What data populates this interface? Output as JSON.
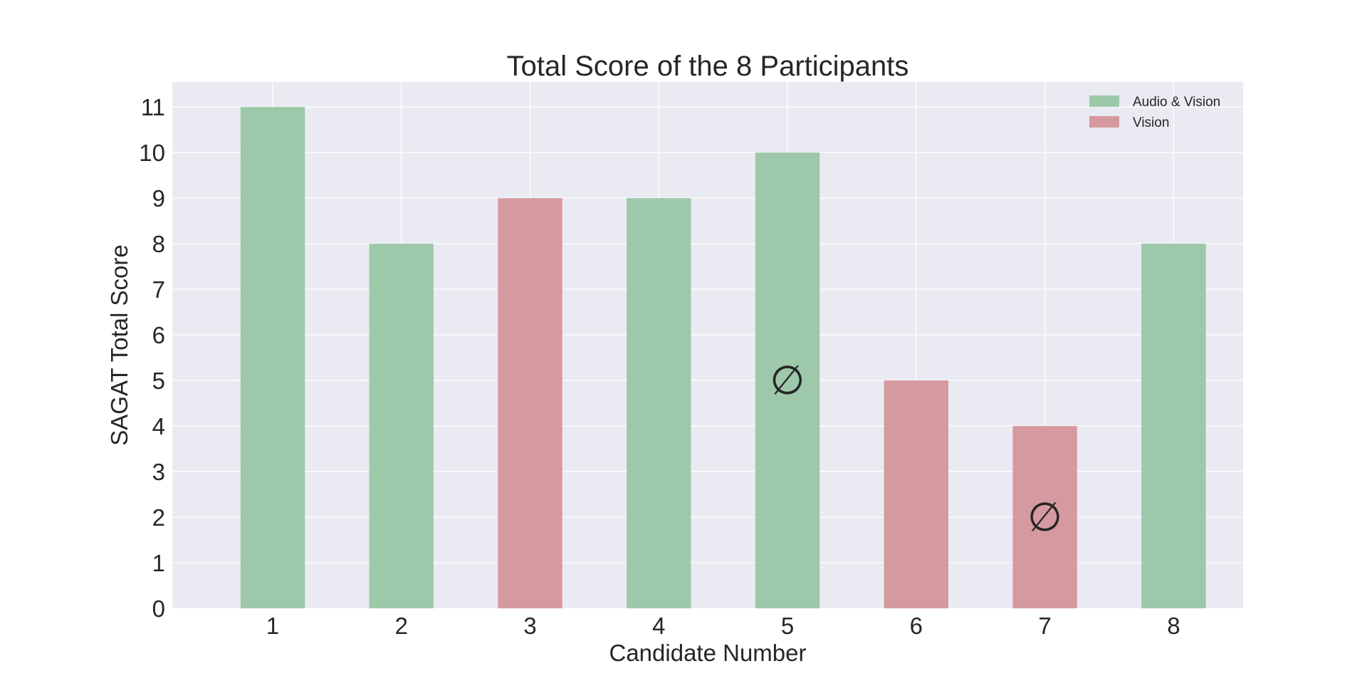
{
  "chart_data": {
    "type": "bar",
    "title": "Total Score of the 8 Participants",
    "xlabel": "Candidate Number",
    "ylabel": "SAGAT Total Score",
    "categories": [
      "1",
      "2",
      "3",
      "4",
      "5",
      "6",
      "7",
      "8"
    ],
    "values": [
      11,
      8,
      9,
      9,
      10,
      5,
      4,
      8
    ],
    "groups": [
      "Audio & Vision",
      "Audio & Vision",
      "Vision",
      "Audio & Vision",
      "Audio & Vision",
      "Vision",
      "Vision",
      "Audio & Vision"
    ],
    "yticks": [
      0,
      1,
      2,
      3,
      4,
      5,
      6,
      7,
      8,
      9,
      10,
      11
    ],
    "ylim": [
      0,
      11.55
    ],
    "grid": true,
    "legend_position": "top-right",
    "legend": [
      {
        "label": "Audio & Vision",
        "color": "#9dc8aa"
      },
      {
        "label": "Vision",
        "color": "#d59aa0"
      }
    ],
    "annotations": [
      {
        "x": "5",
        "y": 5,
        "symbol": "∅"
      },
      {
        "x": "7",
        "y": 2,
        "symbol": "∅"
      }
    ],
    "colors": {
      "background": "#eaeaf2",
      "grid": "#ffffff"
    }
  }
}
